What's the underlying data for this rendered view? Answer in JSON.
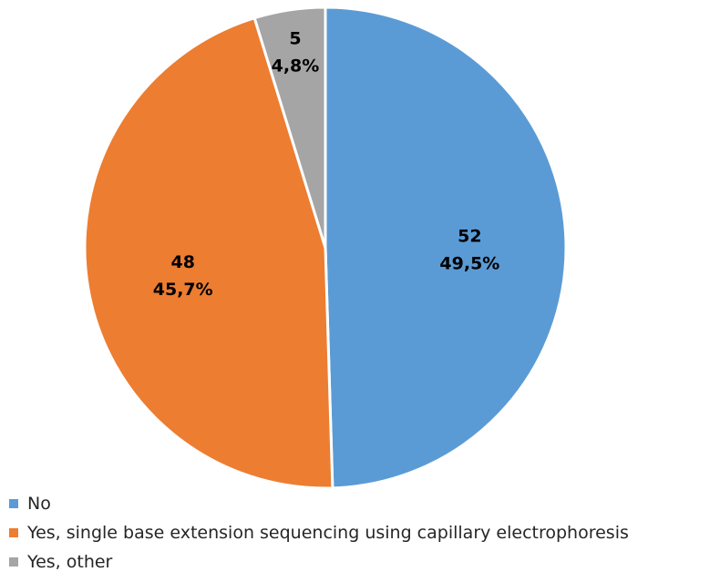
{
  "chart_data": {
    "type": "pie",
    "categories": [
      "No",
      "Yes, single base extension sequencing using capillary electrophoresis",
      "Yes, other"
    ],
    "values": [
      52,
      48,
      5
    ],
    "percent_labels": [
      "49,5%",
      "45,7%",
      "4,8%"
    ],
    "colors": [
      "#5b9bd5",
      "#ed7d31",
      "#a5a5a5"
    ],
    "start_angle": "12 o'clock, clockwise",
    "legend_position": "bottom-left"
  },
  "legend": {
    "items": [
      {
        "label": "No",
        "color": "#5b9bd5"
      },
      {
        "label": "Yes, single base extension sequencing using capillary electrophoresis",
        "color": "#ed7d31"
      },
      {
        "label": "Yes, other",
        "color": "#a5a5a5"
      }
    ]
  }
}
